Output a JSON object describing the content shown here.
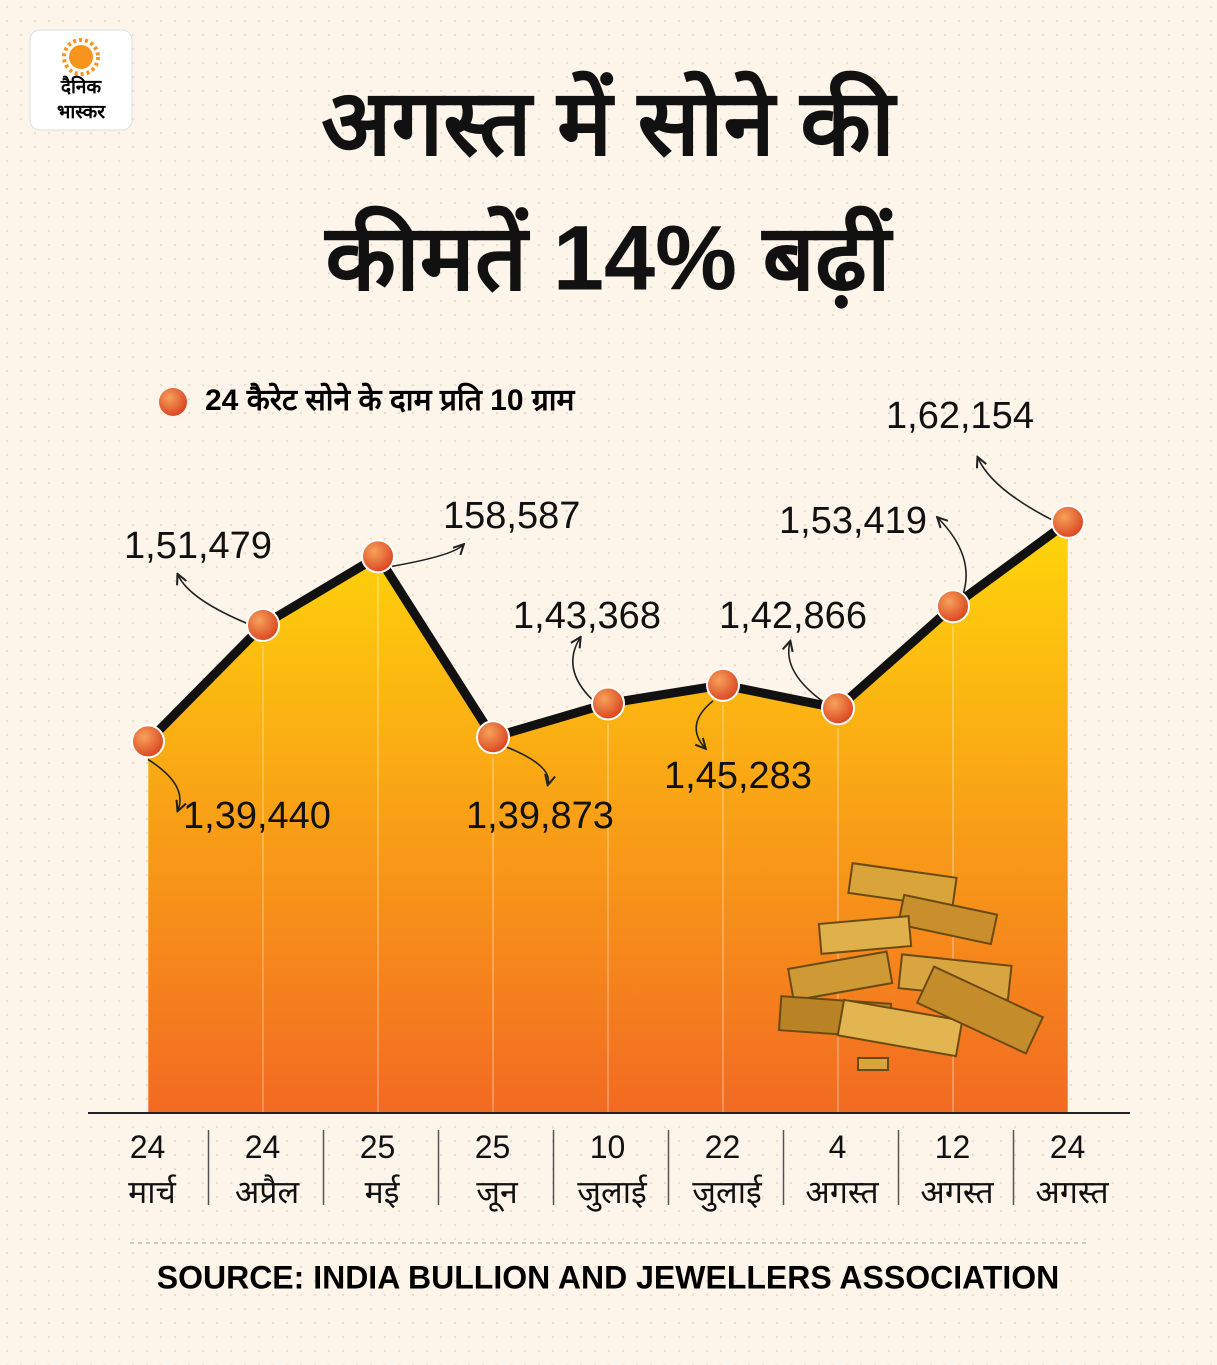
{
  "logo": {
    "line1": "दैनिक",
    "line2": "भास्कर"
  },
  "chart_data": {
    "type": "line",
    "title": [
      "अगस्त में सोने की",
      "कीमतें 14% बढ़ीं"
    ],
    "categories": [
      "24 मार्च",
      "24 अप्रैल",
      "25 मई",
      "25 जून",
      "10 जुलाई",
      "22 जुलाई",
      "4 अगस्त",
      "12 अगस्त",
      "24 अगस्त"
    ],
    "series": [
      {
        "name": "24 कैरेट सोने के दाम प्रति 10 ग्राम",
        "color": "#e4502a",
        "values": [
          139440,
          151479,
          158587,
          139873,
          143368,
          145283,
          142866,
          153419,
          162154
        ],
        "value_labels": [
          "1,39,440",
          "1,51,479",
          "158,587",
          "1,39,873",
          "1,43,368",
          "1,45,283",
          "1,42,866",
          "1,53,419",
          "1,62,154"
        ]
      }
    ],
    "area_colors": [
      "#ffd60a",
      "#f26a22"
    ],
    "line_color": "#111111",
    "ylim": [
      101000,
      170000
    ],
    "source": "SOURCE: INDIA BULLION AND JEWELLERS ASSOCIATION"
  }
}
